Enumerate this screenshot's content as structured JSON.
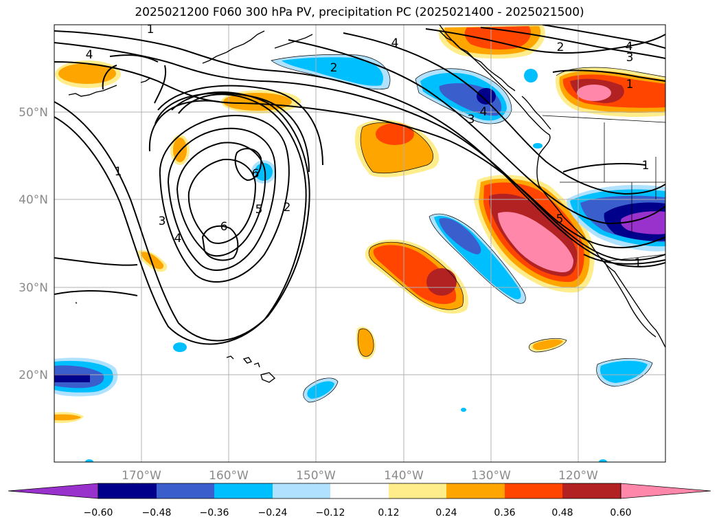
{
  "title": "2025021200 F060 300 hPa PV, precipitation PC (2025021400 - 2025021500)",
  "map": {
    "projection": "PlateCarree",
    "lon_range": [
      -180,
      -110
    ],
    "lat_range": [
      10,
      60
    ],
    "lon_ticks": [
      {
        "value": -170,
        "label": "170°W"
      },
      {
        "value": -160,
        "label": "160°W"
      },
      {
        "value": -150,
        "label": "150°W"
      },
      {
        "value": -140,
        "label": "140°W"
      },
      {
        "value": -130,
        "label": "130°W"
      },
      {
        "value": -120,
        "label": "120°W"
      }
    ],
    "lat_ticks": [
      {
        "value": 20,
        "label": "20°N"
      },
      {
        "value": 30,
        "label": "30°N"
      },
      {
        "value": 40,
        "label": "40°N"
      },
      {
        "value": 50,
        "label": "50°N"
      }
    ],
    "grid": true,
    "contour_field": "300 hPa PV",
    "contour_labels": [
      "1",
      "2",
      "3",
      "4",
      "5",
      "6",
      "4",
      "2",
      "4",
      "3",
      "1",
      "3",
      "4",
      "2",
      "5",
      "6",
      "1",
      "4",
      "3",
      "1",
      "1"
    ],
    "shaded_field": "precipitation PC"
  },
  "colorbar": {
    "levels": [
      "−0.60",
      "−0.48",
      "−0.36",
      "−0.24",
      "−0.12",
      "0.12",
      "0.24",
      "0.36",
      "0.48",
      "0.60"
    ],
    "colors": [
      "#9932cc",
      "#00008b",
      "#3a5fcd",
      "#00bfff",
      "#b0e2ff",
      "#ffffff",
      "#ffec8b",
      "#ffa500",
      "#ff4500",
      "#b22222",
      "#ff88aa"
    ],
    "extend": "both"
  },
  "colors": {
    "coast": "#000000",
    "grid": "#b0b0b0",
    "tick_label": "#8a8a8a"
  }
}
